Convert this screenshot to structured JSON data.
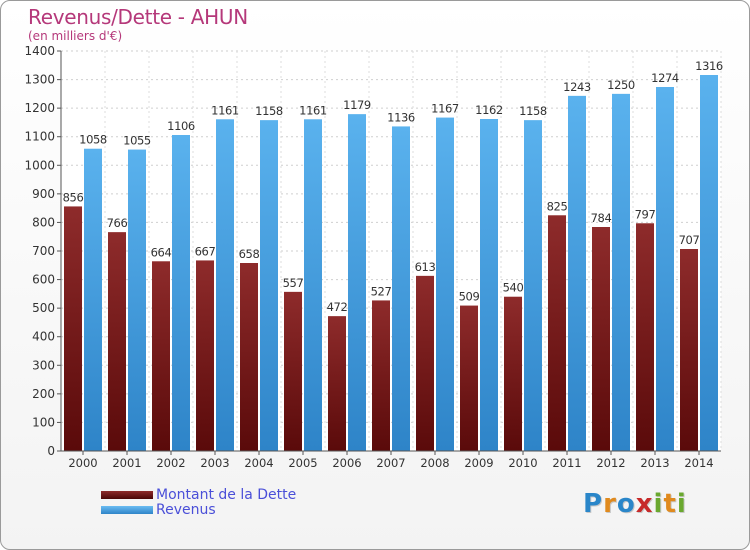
{
  "chart_data": {
    "type": "bar",
    "title": "Revenus/Dette - AHUN",
    "subtitle": "(en milliers d'€)",
    "categories": [
      "2000",
      "2001",
      "2002",
      "2003",
      "2004",
      "2005",
      "2006",
      "2007",
      "2008",
      "2009",
      "2010",
      "2011",
      "2012",
      "2013",
      "2014"
    ],
    "series": [
      {
        "name": "Montant de la Dette",
        "color": "#7b1e1e",
        "values": [
          856,
          766,
          664,
          667,
          658,
          557,
          472,
          527,
          613,
          509,
          540,
          825,
          784,
          797,
          707
        ]
      },
      {
        "name": "Revenus",
        "color": "#4da6e8",
        "values": [
          1058,
          1055,
          1106,
          1161,
          1158,
          1161,
          1179,
          1136,
          1167,
          1162,
          1158,
          1243,
          1250,
          1274,
          1316
        ]
      }
    ],
    "ylim": [
      0,
      1400
    ],
    "yticks": [
      0,
      100,
      200,
      300,
      400,
      500,
      600,
      700,
      800,
      900,
      1000,
      1100,
      1200,
      1300,
      1400
    ],
    "grid": true,
    "legend_position": "bottom-left"
  },
  "logo": {
    "letters": [
      {
        "ch": "P",
        "color": "#2a86c9"
      },
      {
        "ch": "r",
        "color": "#e08a1e"
      },
      {
        "ch": "o",
        "color": "#2a86c9"
      },
      {
        "ch": "x",
        "color": "#c72a2a"
      },
      {
        "ch": "i",
        "color": "#6aa82f"
      },
      {
        "ch": "t",
        "color": "#e08a1e"
      },
      {
        "ch": "i",
        "color": "#6aa82f"
      }
    ]
  }
}
